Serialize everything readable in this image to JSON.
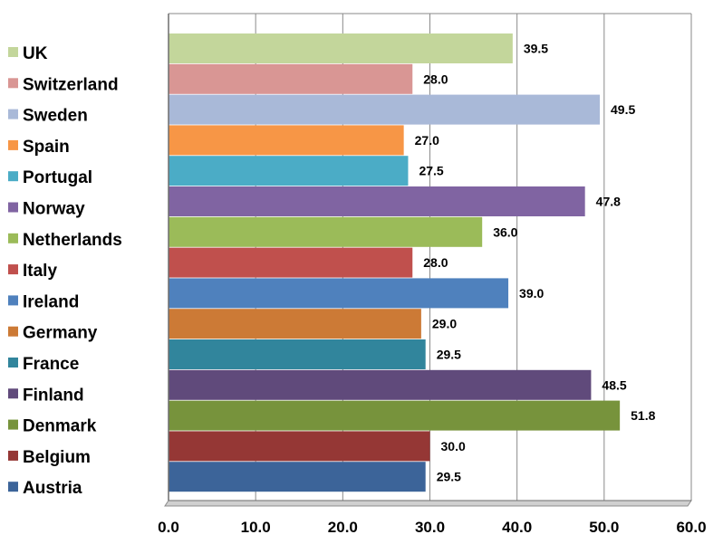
{
  "chart_data": {
    "type": "bar",
    "orientation": "horizontal",
    "title": "",
    "xlabel": "",
    "ylabel": "",
    "xlim": [
      0,
      60
    ],
    "x_ticks": [
      0,
      10,
      20,
      30,
      40,
      50,
      60
    ],
    "x_tick_labels": [
      "0.0",
      "10.0",
      "20.0",
      "30.0",
      "40.0",
      "50.0",
      "60.0"
    ],
    "grid": "vertical",
    "legend_position": "left",
    "categories": [
      "UK",
      "Switzerland",
      "Sweden",
      "Spain",
      "Portugal",
      "Norway",
      "Netherlands",
      "Italy",
      "Ireland",
      "Germany",
      "France",
      "Finland",
      "Denmark",
      "Belgium",
      "Austria"
    ],
    "values": [
      39.5,
      28.0,
      49.5,
      27.0,
      27.5,
      47.8,
      36.0,
      28.0,
      39.0,
      29.0,
      29.5,
      48.5,
      51.8,
      30.0,
      29.5
    ],
    "value_labels": [
      "39.5",
      "28.0",
      "49.5",
      "27.0",
      "27.5",
      "47.8",
      "36.0",
      "28.0",
      "39.0",
      "29.0",
      "29.5",
      "48.5",
      "51.8",
      "30.0",
      "29.5"
    ],
    "colors": [
      "#c3d69b",
      "#d99694",
      "#a9b9d8",
      "#f79646",
      "#4bacc6",
      "#8064a2",
      "#9bbb59",
      "#c0504d",
      "#4f81bd",
      "#cc7a36",
      "#31859c",
      "#604a7b",
      "#77933c",
      "#953735",
      "#3c6499"
    ]
  }
}
